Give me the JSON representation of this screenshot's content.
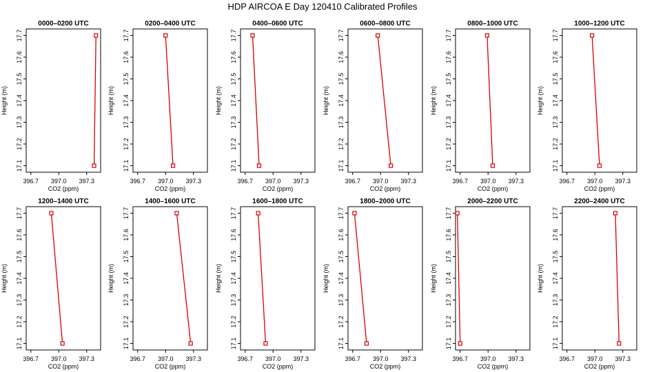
{
  "figure": {
    "title": "HDP AIRCOA E  Day 120410  Calibrated Profiles"
  },
  "colors": {
    "series": "#d40000",
    "axes": "#000000"
  },
  "chart_data": [
    {
      "type": "line",
      "title": "0000–0200 UTC",
      "xlabel": "CO2 (ppm)",
      "ylabel": "Height (m)",
      "xlim": [
        396.65,
        397.45
      ],
      "ylim": [
        17.07,
        17.73
      ],
      "xticks": [
        "396.7",
        "397.0",
        "397.3"
      ],
      "yticks": [
        "17.1",
        "17.2",
        "17.3",
        "17.4",
        "17.5",
        "17.6",
        "17.7"
      ],
      "x": [
        397.4,
        397.38
      ],
      "y": [
        17.7,
        17.1
      ]
    },
    {
      "type": "line",
      "title": "0200–0400 UTC",
      "xlabel": "CO2 (ppm)",
      "ylabel": "Height (m)",
      "xlim": [
        396.65,
        397.45
      ],
      "ylim": [
        17.07,
        17.73
      ],
      "xticks": [
        "396.7",
        "397.0",
        "397.3"
      ],
      "yticks": [
        "17.1",
        "17.2",
        "17.3",
        "17.4",
        "17.5",
        "17.6",
        "17.7"
      ],
      "x": [
        397.0,
        397.08
      ],
      "y": [
        17.7,
        17.1
      ]
    },
    {
      "type": "line",
      "title": "0400–0600 UTC",
      "xlabel": "CO2 (ppm)",
      "ylabel": "Height (m)",
      "xlim": [
        396.65,
        397.45
      ],
      "ylim": [
        17.07,
        17.73
      ],
      "xticks": [
        "396.7",
        "397.0",
        "397.3"
      ],
      "yticks": [
        "17.1",
        "17.2",
        "17.3",
        "17.4",
        "17.5",
        "17.6",
        "17.7"
      ],
      "x": [
        396.78,
        396.85
      ],
      "y": [
        17.7,
        17.1
      ]
    },
    {
      "type": "line",
      "title": "0600–0800 UTC",
      "xlabel": "CO2 (ppm)",
      "ylabel": "Height (m)",
      "xlim": [
        396.65,
        397.45
      ],
      "ylim": [
        17.07,
        17.73
      ],
      "xticks": [
        "396.7",
        "397.0",
        "397.3"
      ],
      "yticks": [
        "17.1",
        "17.2",
        "17.3",
        "17.4",
        "17.5",
        "17.6",
        "17.7"
      ],
      "x": [
        396.97,
        397.11
      ],
      "y": [
        17.7,
        17.1
      ]
    },
    {
      "type": "line",
      "title": "0800–1000 UTC",
      "xlabel": "CO2 (ppm)",
      "ylabel": "Height (m)",
      "xlim": [
        396.65,
        397.45
      ],
      "ylim": [
        17.07,
        17.73
      ],
      "xticks": [
        "396.7",
        "397.0",
        "397.3"
      ],
      "yticks": [
        "17.1",
        "17.2",
        "17.3",
        "17.4",
        "17.5",
        "17.6",
        "17.7"
      ],
      "x": [
        396.99,
        397.05
      ],
      "y": [
        17.7,
        17.1
      ]
    },
    {
      "type": "line",
      "title": "1000–1200 UTC",
      "xlabel": "CO2 (ppm)",
      "ylabel": "Height (m)",
      "xlim": [
        396.65,
        397.45
      ],
      "ylim": [
        17.07,
        17.73
      ],
      "xticks": [
        "396.7",
        "397.0",
        "397.3"
      ],
      "yticks": [
        "17.1",
        "17.2",
        "17.3",
        "17.4",
        "17.5",
        "17.6",
        "17.7"
      ],
      "x": [
        396.97,
        397.05
      ],
      "y": [
        17.7,
        17.1
      ]
    },
    {
      "type": "line",
      "title": "1200–1400 UTC",
      "xlabel": "CO2 (ppm)",
      "ylabel": "Height (m)",
      "xlim": [
        396.65,
        397.45
      ],
      "ylim": [
        17.07,
        17.73
      ],
      "xticks": [
        "396.7",
        "397.0",
        "397.3"
      ],
      "yticks": [
        "17.1",
        "17.2",
        "17.3",
        "17.4",
        "17.5",
        "17.6",
        "17.7"
      ],
      "x": [
        396.92,
        397.04
      ],
      "y": [
        17.7,
        17.1
      ]
    },
    {
      "type": "line",
      "title": "1400–1600 UTC",
      "xlabel": "CO2 (ppm)",
      "ylabel": "Height (m)",
      "xlim": [
        396.65,
        397.45
      ],
      "ylim": [
        17.07,
        17.73
      ],
      "xticks": [
        "396.7",
        "397.0",
        "397.3"
      ],
      "yticks": [
        "17.1",
        "17.2",
        "17.3",
        "17.4",
        "17.5",
        "17.6",
        "17.7"
      ],
      "x": [
        397.12,
        397.27
      ],
      "y": [
        17.7,
        17.1
      ]
    },
    {
      "type": "line",
      "title": "1600–1800 UTC",
      "xlabel": "CO2 (ppm)",
      "ylabel": "Height (m)",
      "xlim": [
        396.65,
        397.45
      ],
      "ylim": [
        17.07,
        17.73
      ],
      "xticks": [
        "396.7",
        "397.0",
        "397.3"
      ],
      "yticks": [
        "17.1",
        "17.2",
        "17.3",
        "17.4",
        "17.5",
        "17.6",
        "17.7"
      ],
      "x": [
        396.84,
        396.92
      ],
      "y": [
        17.7,
        17.1
      ]
    },
    {
      "type": "line",
      "title": "1800–2000 UTC",
      "xlabel": "CO2 (ppm)",
      "ylabel": "Height (m)",
      "xlim": [
        396.65,
        397.45
      ],
      "ylim": [
        17.07,
        17.73
      ],
      "xticks": [
        "396.7",
        "397.0",
        "397.3"
      ],
      "yticks": [
        "17.1",
        "17.2",
        "17.3",
        "17.4",
        "17.5",
        "17.6",
        "17.7"
      ],
      "x": [
        396.72,
        396.85
      ],
      "y": [
        17.7,
        17.1
      ]
    },
    {
      "type": "line",
      "title": "2000–2200 UTC",
      "xlabel": "CO2 (ppm)",
      "ylabel": "Height (m)",
      "xlim": [
        396.65,
        397.45
      ],
      "ylim": [
        17.07,
        17.73
      ],
      "xticks": [
        "396.7",
        "397.0",
        "397.3"
      ],
      "yticks": [
        "17.1",
        "17.2",
        "17.3",
        "17.4",
        "17.5",
        "17.6",
        "17.7"
      ],
      "x": [
        396.67,
        396.7
      ],
      "y": [
        17.7,
        17.1
      ]
    },
    {
      "type": "line",
      "title": "2200–2400 UTC",
      "xlabel": "CO2 (ppm)",
      "ylabel": "Height (m)",
      "xlim": [
        396.65,
        397.45
      ],
      "ylim": [
        17.07,
        17.73
      ],
      "xticks": [
        "396.7",
        "397.0",
        "397.3"
      ],
      "yticks": [
        "17.1",
        "17.2",
        "17.3",
        "17.4",
        "17.5",
        "17.6",
        "17.7"
      ],
      "x": [
        397.22,
        397.26
      ],
      "y": [
        17.7,
        17.1
      ]
    }
  ]
}
